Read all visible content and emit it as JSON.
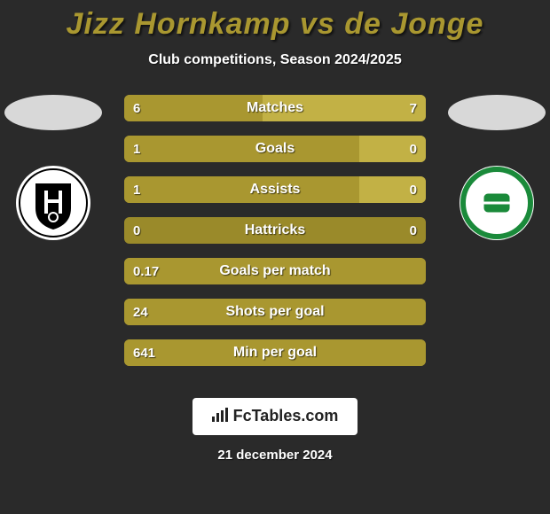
{
  "title_color": "#a99730",
  "title": "Jizz Hornkamp vs de Jonge",
  "subtitle": "Club competitions, Season 2024/2025",
  "brand": "FcTables.com",
  "date": "21 december 2024",
  "bar_bg": "#9a8a2a",
  "bar_color_a": "#a99730",
  "bar_color_b": "#c2b145",
  "stats": [
    {
      "label": "Matches",
      "a": "6",
      "b": "7",
      "pa": 46,
      "pb": 54
    },
    {
      "label": "Goals",
      "a": "1",
      "b": "0",
      "pa": 78,
      "pb": 22
    },
    {
      "label": "Assists",
      "a": "1",
      "b": "0",
      "pa": 78,
      "pb": 22
    },
    {
      "label": "Hattricks",
      "a": "0",
      "b": "0",
      "pa": 0,
      "pb": 0
    },
    {
      "label": "Goals per match",
      "a": "0.17",
      "b": "",
      "pa": 100,
      "pb": 0
    },
    {
      "label": "Shots per goal",
      "a": "24",
      "b": "",
      "pa": 100,
      "pb": 0
    },
    {
      "label": "Min per goal",
      "a": "641",
      "b": "",
      "pa": 100,
      "pb": 0
    }
  ],
  "left_crest": {
    "outer": "#ffffff",
    "shield": "#000000",
    "name": "Heracles"
  },
  "right_crest": {
    "outer": "#ffffff",
    "ring": "#1a8a3a",
    "inner": "#1a8a3a",
    "name": "FC Groningen"
  }
}
